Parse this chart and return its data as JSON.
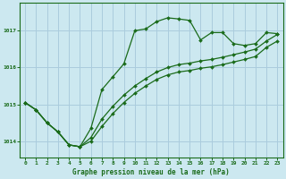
{
  "title": "Graphe pression niveau de la mer (hPa)",
  "bg_color": "#cce8f0",
  "grid_color": "#aaccdd",
  "line_color": "#1a6b1a",
  "ylabel_values": [
    1014,
    1015,
    1016,
    1017
  ],
  "x_ticks": [
    0,
    1,
    2,
    3,
    4,
    5,
    6,
    7,
    8,
    9,
    10,
    11,
    12,
    13,
    14,
    15,
    16,
    17,
    18,
    19,
    20,
    21,
    22,
    23
  ],
  "xlim": [
    -0.5,
    23.5
  ],
  "ylim": [
    1013.55,
    1017.75
  ],
  "line1_x": [
    0,
    1,
    2,
    3,
    4,
    5,
    6,
    7,
    8,
    9,
    10,
    11,
    12,
    13,
    14,
    15,
    16,
    17,
    18,
    19,
    20,
    21,
    22,
    23
  ],
  "line1_y": [
    1015.05,
    1014.85,
    1014.5,
    1014.25,
    1013.9,
    1013.85,
    1014.35,
    1015.4,
    1015.75,
    1016.1,
    1017.0,
    1017.05,
    1017.25,
    1017.35,
    1017.32,
    1017.28,
    1016.75,
    1016.95,
    1016.95,
    1016.65,
    1016.6,
    1016.65,
    1016.95,
    1016.92
  ],
  "line2_x": [
    0,
    1,
    2,
    3,
    4,
    5,
    6,
    7,
    8,
    9,
    10,
    11,
    12,
    13,
    14,
    15,
    16,
    17,
    18,
    19,
    20,
    21,
    22,
    23
  ],
  "line2_y": [
    1015.05,
    1014.85,
    1014.5,
    1014.25,
    1013.9,
    1013.85,
    1014.1,
    1014.6,
    1014.95,
    1015.25,
    1015.5,
    1015.7,
    1015.88,
    1016.0,
    1016.08,
    1016.12,
    1016.18,
    1016.22,
    1016.28,
    1016.35,
    1016.42,
    1016.5,
    1016.72,
    1016.9
  ],
  "line3_x": [
    0,
    1,
    2,
    3,
    4,
    5,
    6,
    7,
    8,
    9,
    10,
    11,
    12,
    13,
    14,
    15,
    16,
    17,
    18,
    19,
    20,
    21,
    22,
    23
  ],
  "line3_y": [
    1015.05,
    1014.85,
    1014.5,
    1014.25,
    1013.9,
    1013.85,
    1014.0,
    1014.4,
    1014.75,
    1015.05,
    1015.3,
    1015.5,
    1015.68,
    1015.8,
    1015.88,
    1015.92,
    1015.98,
    1016.02,
    1016.08,
    1016.15,
    1016.22,
    1016.3,
    1016.55,
    1016.72
  ]
}
